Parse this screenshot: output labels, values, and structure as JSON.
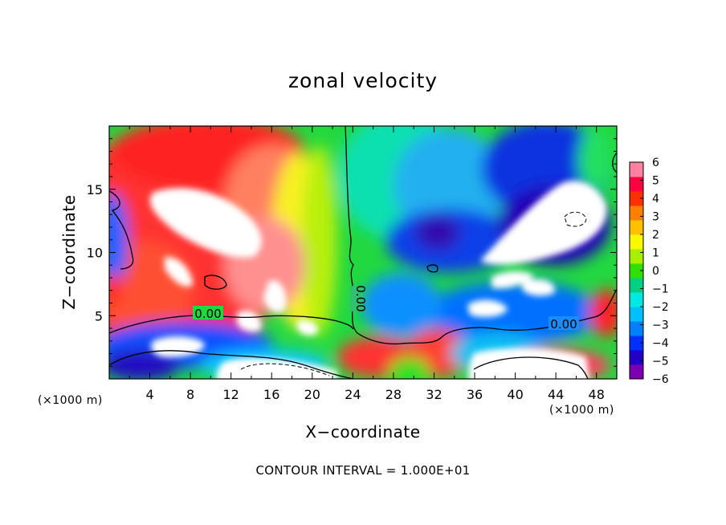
{
  "chart_data": {
    "type": "heatmap",
    "title": "zonal velocity",
    "xlabel": "X−coordinate",
    "ylabel": "Z−coordinate",
    "x_unit": "(×1000 m)",
    "y_unit": "(×1000 m)",
    "xlim": [
      0,
      50
    ],
    "ylim": [
      0,
      20
    ],
    "x_ticks": [
      4,
      8,
      12,
      16,
      20,
      24,
      28,
      32,
      36,
      40,
      44,
      48
    ],
    "y_ticks": [
      5,
      10,
      15
    ],
    "colorbar": {
      "min": -6,
      "max": 6,
      "ticks": [
        "6",
        "5",
        "4",
        "3",
        "2",
        "1",
        "0",
        "−1",
        "−2",
        "−3",
        "−4",
        "−5",
        "−6"
      ],
      "colors": [
        "#7a00b0",
        "#2200c8",
        "#0030ff",
        "#0080ff",
        "#00c0ff",
        "#00e8e0",
        "#00d080",
        "#30e000",
        "#a8f000",
        "#f8f800",
        "#ffc000",
        "#ff8000",
        "#ff3000",
        "#ff0040",
        "#ff80a0"
      ]
    },
    "contour_labels": [
      "0.00",
      "0.00",
      "0.00"
    ],
    "annotation": "CONTOUR INTERVAL = 1.000E+01"
  }
}
